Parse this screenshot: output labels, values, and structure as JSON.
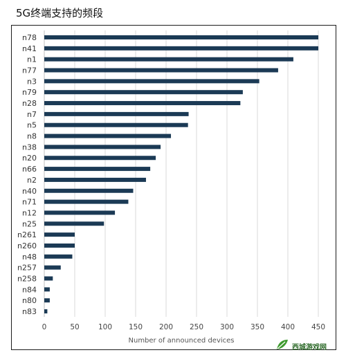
{
  "title": "5G终端支持的频段",
  "chart_data": {
    "type": "bar",
    "orientation": "horizontal",
    "categories": [
      "n78",
      "n41",
      "n1",
      "n77",
      "n3",
      "n79",
      "n28",
      "n7",
      "n5",
      "n8",
      "n38",
      "n20",
      "n66",
      "n2",
      "n40",
      "n71",
      "n12",
      "n25",
      "n261",
      "n260",
      "n48",
      "n257",
      "n258",
      "n84",
      "n80",
      "n83"
    ],
    "values": [
      450,
      450,
      409,
      384,
      353,
      326,
      322,
      237,
      236,
      208,
      191,
      183,
      174,
      167,
      146,
      138,
      116,
      98,
      50,
      50,
      46,
      27,
      14,
      9,
      9,
      5
    ],
    "xlabel": "Number of announced devices",
    "ylabel": "",
    "xlim": [
      0,
      450
    ],
    "xticks": [
      0,
      50,
      100,
      150,
      200,
      250,
      300,
      350,
      400,
      450
    ],
    "grid": "vertical",
    "bar_color": "#1b3a55",
    "grid_color": "#d9d9d9"
  },
  "watermark": {
    "text": "西城游戏网",
    "icon": "leaf-logo-icon"
  }
}
